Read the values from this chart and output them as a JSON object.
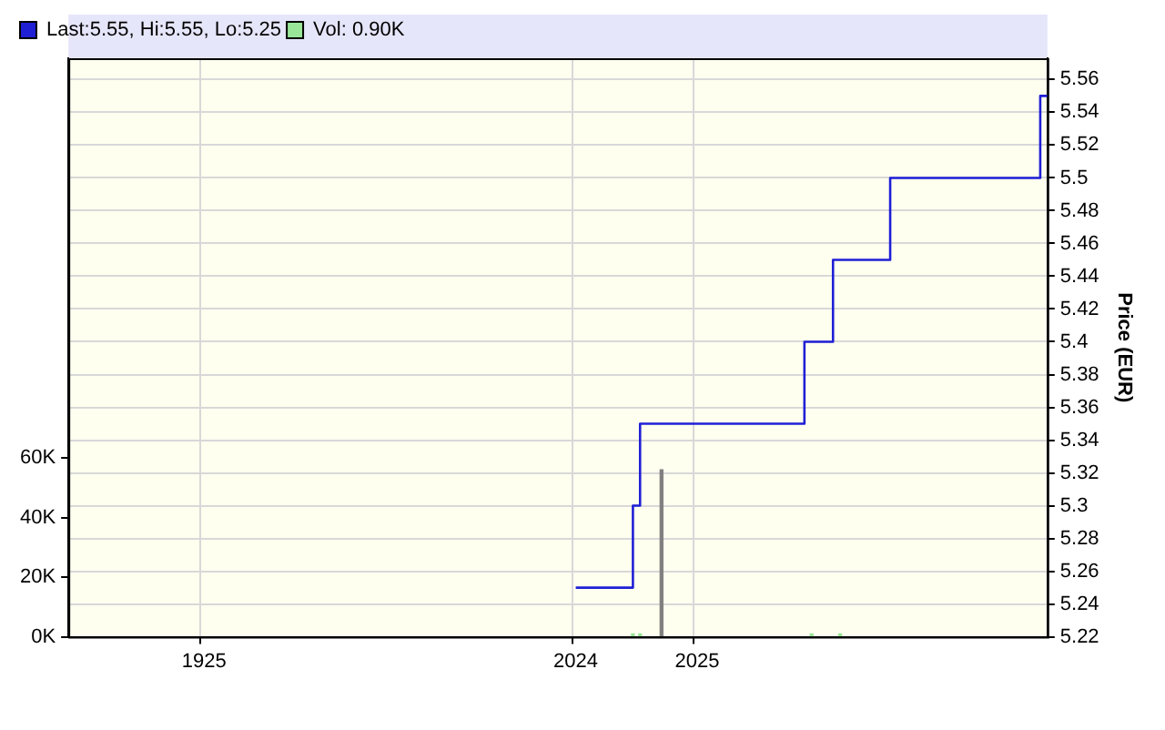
{
  "chart_data": {
    "type": "step",
    "categories": [
      null,
      null,
      null,
      null,
      null,
      null,
      null,
      null,
      null,
      null,
      null,
      null,
      null,
      null,
      null,
      null,
      null,
      null,
      null,
      "1925",
      null,
      null,
      null,
      null,
      null,
      null,
      null,
      null,
      null,
      null,
      null,
      null,
      null,
      null,
      null,
      null,
      null,
      null,
      null,
      null,
      null,
      null,
      null,
      null,
      null,
      null,
      null,
      null,
      null,
      null,
      null,
      null,
      null,
      null,
      null,
      null,
      null,
      null,
      null,
      null,
      null,
      null,
      null,
      null,
      null,
      null,
      null,
      null,
      null,
      null,
      null,
      "2024",
      null,
      null,
      null,
      null,
      null,
      null,
      null,
      null,
      null,
      null,
      null,
      null,
      null,
      null,
      null,
      null,
      "2025",
      null,
      null,
      null,
      null,
      null,
      null,
      null,
      null,
      null,
      null,
      null,
      null,
      null,
      null,
      null,
      null,
      null,
      null,
      null,
      null,
      null,
      null,
      null,
      null,
      null,
      null,
      null,
      null,
      null,
      null,
      null,
      null,
      null,
      null,
      null,
      null,
      null,
      null,
      null,
      null,
      null,
      null,
      null,
      null,
      null,
      null,
      null,
      null,
      null
    ],
    "series": [
      {
        "name": "Last:5.55, Hi:5.55, Lo:5.25",
        "axis": "y2",
        "color": "#1f1fd6",
        "values": [
          null,
          null,
          null,
          null,
          null,
          null,
          null,
          null,
          null,
          null,
          null,
          null,
          null,
          null,
          null,
          null,
          null,
          null,
          null,
          null,
          null,
          null,
          null,
          null,
          null,
          null,
          null,
          null,
          null,
          null,
          null,
          null,
          null,
          null,
          null,
          null,
          null,
          null,
          null,
          null,
          null,
          null,
          null,
          null,
          null,
          null,
          null,
          null,
          null,
          null,
          null,
          null,
          null,
          null,
          null,
          null,
          null,
          null,
          null,
          null,
          null,
          null,
          null,
          null,
          null,
          null,
          null,
          null,
          null,
          null,
          null,
          5.25,
          5.25,
          5.25,
          5.25,
          5.25,
          5.25,
          5.25,
          5.25,
          5.25,
          5.3,
          5.35,
          5.35,
          5.35,
          5.35,
          5.35,
          5.35,
          5.35,
          5.35,
          5.35,
          5.35,
          5.35,
          5.35,
          5.35,
          5.35,
          5.35,
          5.35,
          5.35,
          5.35,
          5.35,
          5.35,
          5.35,
          5.35,
          5.35,
          5.4,
          5.4,
          5.4,
          5.4,
          5.45,
          5.45,
          5.45,
          5.45,
          5.45,
          5.45,
          5.45,
          5.45,
          5.5,
          5.5,
          5.5,
          5.5,
          5.5,
          5.5,
          5.5,
          5.5,
          5.5,
          5.5,
          5.5,
          5.5,
          5.5,
          5.5,
          5.5,
          5.5,
          5.5,
          5.5,
          5.5,
          5.5,
          5.5,
          5.55
        ]
      },
      {
        "name": "Vol: 0.90K",
        "type": "bar",
        "axis": "y",
        "color": "#99e699",
        "values": [
          null,
          null,
          null,
          null,
          null,
          null,
          null,
          null,
          null,
          null,
          null,
          null,
          null,
          null,
          null,
          null,
          null,
          null,
          null,
          null,
          null,
          null,
          null,
          null,
          null,
          null,
          null,
          null,
          null,
          null,
          null,
          null,
          null,
          null,
          null,
          null,
          null,
          null,
          null,
          null,
          null,
          null,
          null,
          null,
          null,
          null,
          null,
          null,
          null,
          null,
          null,
          null,
          null,
          null,
          null,
          null,
          null,
          null,
          null,
          null,
          null,
          null,
          null,
          null,
          null,
          null,
          null,
          null,
          null,
          null,
          null,
          null,
          null,
          null,
          null,
          null,
          null,
          null,
          null,
          1000,
          1000,
          null,
          null,
          56000,
          null,
          null,
          null,
          null,
          null,
          null,
          null,
          null,
          null,
          null,
          null,
          null,
          null,
          null,
          null,
          null,
          null,
          null,
          null,
          null,
          1000,
          null,
          null,
          null,
          1000,
          null,
          null,
          null,
          null,
          null,
          null,
          null,
          null,
          null,
          null,
          null,
          null,
          null,
          null,
          null,
          null,
          null,
          null,
          null,
          null,
          null,
          null,
          null,
          null,
          null,
          null,
          null,
          null,
          null
        ],
        "colors": [
          null,
          null,
          null,
          null,
          null,
          null,
          null,
          null,
          null,
          null,
          null,
          null,
          null,
          null,
          null,
          null,
          null,
          null,
          null,
          null,
          null,
          null,
          null,
          null,
          null,
          null,
          null,
          null,
          null,
          null,
          null,
          null,
          null,
          null,
          null,
          null,
          null,
          null,
          null,
          null,
          null,
          null,
          null,
          null,
          null,
          null,
          null,
          null,
          null,
          null,
          null,
          null,
          null,
          null,
          null,
          null,
          null,
          null,
          null,
          null,
          null,
          null,
          null,
          null,
          null,
          null,
          null,
          null,
          null,
          null,
          null,
          null,
          null,
          null,
          null,
          null,
          null,
          null,
          null,
          null,
          null,
          null,
          null,
          "#808080",
          null,
          null,
          null,
          null,
          null,
          null,
          null,
          null,
          null,
          null,
          null,
          null,
          null,
          null,
          null,
          null,
          null,
          null,
          null,
          null,
          null,
          null,
          null,
          null,
          null,
          null,
          null,
          null,
          null,
          null,
          null,
          null,
          null,
          null,
          null,
          null,
          null,
          null,
          null,
          null,
          null,
          null,
          null,
          null,
          null,
          null,
          null,
          null,
          null,
          null,
          null,
          null,
          null,
          null
        ]
      }
    ],
    "ylim": [
      0,
      194000
    ],
    "yticks": [
      {
        "value": 0,
        "label": "0K"
      },
      {
        "value": 20000,
        "label": "20K"
      },
      {
        "value": 40000,
        "label": "40K"
      },
      {
        "value": 60000,
        "label": "60K"
      }
    ],
    "y2lim": [
      5.22,
      5.573
    ],
    "y2ticks": [
      5.22,
      5.24,
      5.26,
      5.28,
      5.3,
      5.32,
      5.34,
      5.36,
      5.38,
      5.4,
      5.42,
      5.44,
      5.46,
      5.48,
      5.5,
      5.52,
      5.54,
      5.56
    ],
    "y2label": "Price (EUR)",
    "grid": true,
    "legend": "top left"
  }
}
